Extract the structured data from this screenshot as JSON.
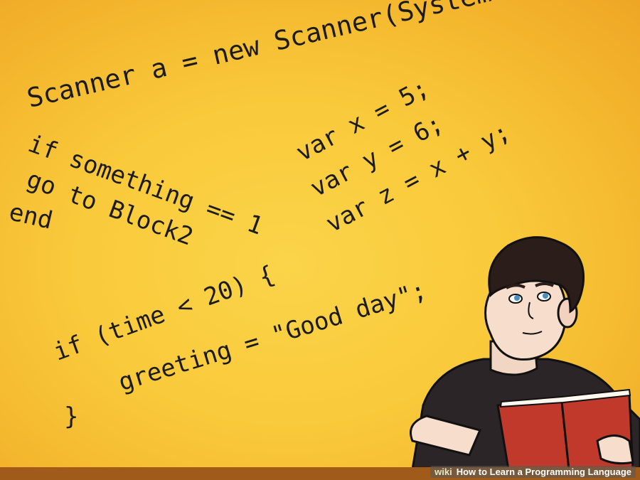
{
  "code": {
    "scanner_line": "Scanner a = new Scanner(System.in);",
    "if_line": "if something == 1",
    "goto_line": "go to Block2",
    "end_line": "end",
    "var_x": "var x = 5;",
    "var_y": "var y = 6;",
    "var_z": "var z = x + y;",
    "time_if": "if (time < 20) {",
    "greeting": "greeting = \"Good day\";",
    "close_brace": "}"
  },
  "watermark": {
    "logo": "wiki",
    "title": "How to Learn a Programming Language"
  },
  "colors": {
    "background": "#f9c93a",
    "text": "#1b1b1b",
    "book": "#c0392b",
    "shirt": "#2b2527",
    "hair": "#2a1d1a"
  },
  "illustration": {
    "subject": "young man reading a red book"
  }
}
